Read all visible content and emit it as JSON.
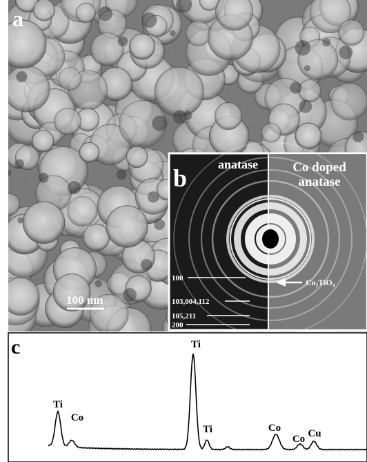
{
  "panel_a": {
    "label": "a",
    "scale_bar": "100 nm"
  },
  "panel_b": {
    "label": "b",
    "left_title": "anatase",
    "right_title_1": "Co doped",
    "right_title_2": "anatase",
    "ring_labels": [
      "100",
      "103,004,112",
      "105,211",
      "200"
    ],
    "arrow_label": "Co₂TiO₄"
  },
  "panel_c": {
    "label": "c",
    "peak_labels": [
      "Ti",
      "Co",
      "Ti",
      "Ti",
      "Co",
      "Co",
      "Cu"
    ]
  }
}
